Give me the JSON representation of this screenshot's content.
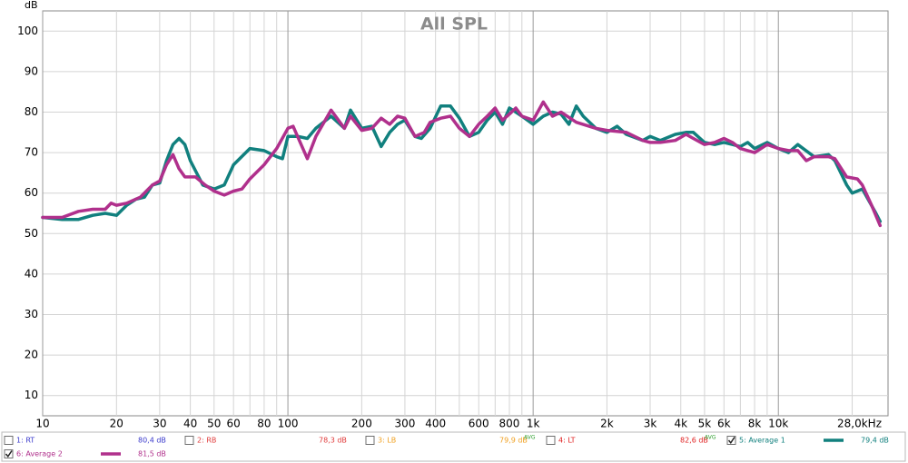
{
  "chart_data": {
    "type": "line",
    "title": "All SPL",
    "y_label": "dB",
    "xscale": "log",
    "grid": true,
    "xlim": [
      10,
      28000
    ],
    "ylim": [
      5,
      105
    ],
    "yticks": [
      10,
      20,
      30,
      40,
      50,
      60,
      70,
      80,
      90,
      100
    ],
    "xticks": [
      10,
      20,
      30,
      40,
      50,
      60,
      80,
      100,
      200,
      300,
      400,
      600,
      800,
      {
        "value": 1000,
        "label": "1k"
      },
      {
        "value": 2000,
        "label": "2k"
      },
      {
        "value": 3000,
        "label": "3k"
      },
      {
        "value": 4000,
        "label": "4k"
      },
      {
        "value": 5000,
        "label": "5k"
      },
      {
        "value": 6000,
        "label": "6k"
      },
      {
        "value": 8000,
        "label": "8k"
      },
      {
        "value": 10000,
        "label": "10k"
      },
      {
        "value": 28000,
        "label": "28,0kHz"
      }
    ],
    "xticks_minor": [
      70,
      90,
      500,
      700,
      900,
      7000,
      9000,
      20000
    ],
    "traces": [
      {
        "name": "1: RT",
        "color": "#3a3acc",
        "level": "80,4 dB",
        "checked": false
      },
      {
        "name": "2: RB",
        "color": "#e03a3a",
        "level": "78,3 dB",
        "checked": false
      },
      {
        "name": "3: LB",
        "color": "#f0a020",
        "level": "79,9 dB",
        "avg_tag": "AVG",
        "checked": false
      },
      {
        "name": "4: LT",
        "color": "#e02020",
        "level": "82,6 dB",
        "avg_tag": "AVG",
        "checked": false
      }
    ],
    "series": [
      {
        "name": "5: Average 1",
        "color": "#11807e",
        "level": "79,4 dB",
        "checked": true,
        "x": [
          10,
          12,
          14,
          16,
          18,
          20,
          22,
          24,
          26,
          28,
          30,
          32,
          34,
          36,
          38,
          40,
          45,
          50,
          55,
          60,
          70,
          80,
          90,
          95,
          100,
          110,
          120,
          130,
          150,
          170,
          180,
          200,
          220,
          240,
          260,
          280,
          300,
          330,
          350,
          380,
          420,
          460,
          500,
          550,
          600,
          650,
          700,
          750,
          800,
          850,
          900,
          1000,
          1100,
          1200,
          1300,
          1400,
          1500,
          1600,
          1800,
          2000,
          2200,
          2400,
          2800,
          3000,
          3300,
          3800,
          4200,
          4500,
          5000,
          5500,
          6000,
          6500,
          7000,
          7500,
          8000,
          9000,
          10000,
          11000,
          12000,
          14000,
          16000,
          17000,
          19000,
          20000,
          22000,
          25000,
          26000
        ],
        "values": [
          54,
          53.5,
          53.5,
          54.5,
          55,
          54.5,
          57,
          58.5,
          59,
          62,
          62.5,
          68,
          72,
          73.5,
          72,
          68,
          62,
          61,
          62,
          67,
          71,
          70.5,
          69,
          68.5,
          74,
          74,
          73.5,
          76,
          79,
          76,
          80.5,
          76,
          76.5,
          71.5,
          75,
          77,
          78,
          74,
          73.5,
          76,
          81.5,
          81.5,
          78.5,
          74,
          75,
          78,
          80,
          77,
          81,
          80,
          79,
          77,
          79,
          80,
          79.5,
          77,
          81.5,
          79,
          76,
          75,
          76.5,
          74.5,
          73,
          74,
          73,
          74.5,
          75,
          75,
          72.5,
          72,
          72.5,
          72,
          71.5,
          72.5,
          71,
          72.5,
          71,
          70,
          72,
          69,
          69.5,
          68,
          62,
          60,
          61,
          55,
          53
        ]
      },
      {
        "name": "6: Average 2",
        "color": "#b0308c",
        "level": "81,5 dB",
        "checked": true,
        "x": [
          10,
          12,
          14,
          16,
          18,
          19,
          20,
          22,
          25,
          28,
          30,
          32,
          34,
          36,
          38,
          42,
          46,
          50,
          55,
          60,
          65,
          70,
          80,
          90,
          100,
          105,
          120,
          130,
          150,
          170,
          180,
          200,
          220,
          240,
          260,
          280,
          300,
          330,
          360,
          380,
          420,
          460,
          500,
          550,
          600,
          650,
          700,
          750,
          800,
          850,
          900,
          1000,
          1100,
          1200,
          1300,
          1500,
          1800,
          2000,
          2400,
          2800,
          3000,
          3300,
          3800,
          4200,
          4500,
          5000,
          5500,
          6000,
          6500,
          7000,
          7500,
          8000,
          9000,
          10000,
          11000,
          12000,
          13000,
          14000,
          16000,
          17000,
          19000,
          21000,
          22000,
          24000,
          26000
        ],
        "values": [
          54,
          54,
          55.5,
          56,
          56,
          57.5,
          57,
          57.5,
          59,
          62,
          63,
          67,
          69.5,
          66,
          64,
          64,
          62,
          60.5,
          59.5,
          60.5,
          61,
          63.5,
          67,
          71,
          76,
          76.5,
          68.5,
          74,
          80.5,
          76,
          79,
          75.5,
          76,
          78.5,
          77,
          79,
          78.5,
          74,
          75,
          77.5,
          78.5,
          79,
          76,
          74,
          77,
          79,
          81,
          78,
          79.5,
          81,
          79,
          78,
          82.5,
          79,
          80,
          77.5,
          76,
          75.5,
          75,
          73,
          72.5,
          72.5,
          73,
          74.5,
          73.5,
          72,
          72.5,
          73.5,
          72.5,
          71,
          70.5,
          70,
          72,
          71,
          70.5,
          70.5,
          68,
          69,
          69,
          68.5,
          64,
          63.5,
          62,
          57,
          52
        ]
      }
    ]
  }
}
